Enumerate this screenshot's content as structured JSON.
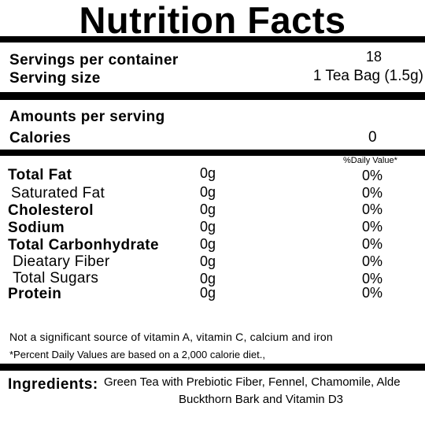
{
  "title": "Nutrition Facts",
  "servings": {
    "container_label": "Servings per container",
    "container_value": "18",
    "size_label": "Serving size",
    "size_value": "1 Tea Bag (1.5g)"
  },
  "amounts": {
    "heading": "Amounts per serving",
    "calories_label": "Calories",
    "calories_value": "0"
  },
  "daily_value_header": "%Daily Value*",
  "nutrients": [
    {
      "name": "Total Fat",
      "amount": "0g",
      "dv": "0%"
    },
    {
      "name": "Saturated Fat",
      "amount": "0g",
      "dv": "0%"
    },
    {
      "name": "Cholesterol",
      "amount": "0g",
      "dv": "0%"
    },
    {
      "name": "Sodium",
      "amount": "0g",
      "dv": "0%"
    },
    {
      "name": "Total Carbonhydrate",
      "amount": "0g",
      "dv": "0%"
    },
    {
      "name": "Dieatary Fiber",
      "amount": "0g",
      "dv": "0%"
    },
    {
      "name": "Total Sugars",
      "amount": "0g",
      "dv": "0%"
    },
    {
      "name": "Protein",
      "amount": "0g",
      "dv": "0%"
    }
  ],
  "notes": {
    "vitamins": "Not a significant source of vitamin A, vitamin C, calcium and iron",
    "percent": "*Percent Daily Values are based on a 2,000 calorie diet.,"
  },
  "ingredients": {
    "label": "Ingredients:",
    "line1": "Green Tea with Prebiotic Fiber, Fennel, Chamomile, Alde",
    "line2": "Buckthorn Bark and Vitamin D3"
  }
}
